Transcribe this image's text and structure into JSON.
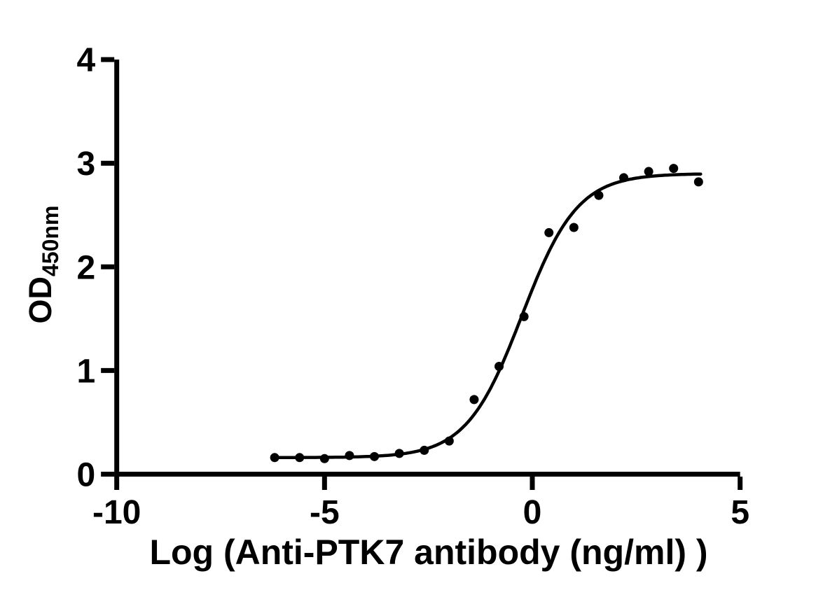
{
  "figure": {
    "background": "#ffffff",
    "style": "graphpad-prism-like"
  },
  "chart_data": {
    "type": "scatter",
    "title": "",
    "xlabel": "Log (Anti-PTK7 antibody (ng/ml) )",
    "ylabel_main": "OD",
    "ylabel_sub": "450nm",
    "xlim": [
      -10,
      5
    ],
    "ylim": [
      0,
      4
    ],
    "xticks": [
      -10,
      -5,
      0,
      5
    ],
    "yticks": [
      0,
      1,
      2,
      3,
      4
    ],
    "grid": false,
    "legend": "none",
    "axis_color": "#000000",
    "marker": {
      "shape": "circle",
      "color": "#000000",
      "radius_px": 6.5
    },
    "curve_color": "#000000",
    "x": [
      -6.2,
      -5.6,
      -5.0,
      -4.4,
      -3.8,
      -3.2,
      -2.6,
      -2.0,
      -1.4,
      -0.8,
      -0.2,
      0.4,
      1.0,
      1.6,
      2.2,
      2.8,
      3.4,
      4.0
    ],
    "y": [
      0.16,
      0.16,
      0.15,
      0.18,
      0.17,
      0.2,
      0.23,
      0.32,
      0.72,
      1.04,
      1.52,
      2.33,
      2.38,
      2.69,
      2.86,
      2.92,
      2.95,
      2.82
    ],
    "curve_fit": {
      "model": "four_parameter_logistic",
      "bottom": 0.16,
      "top": 2.9,
      "log_ec50": -0.25,
      "hill_slope": 0.65,
      "x_start": -6.25,
      "x_end": 4.05
    }
  }
}
